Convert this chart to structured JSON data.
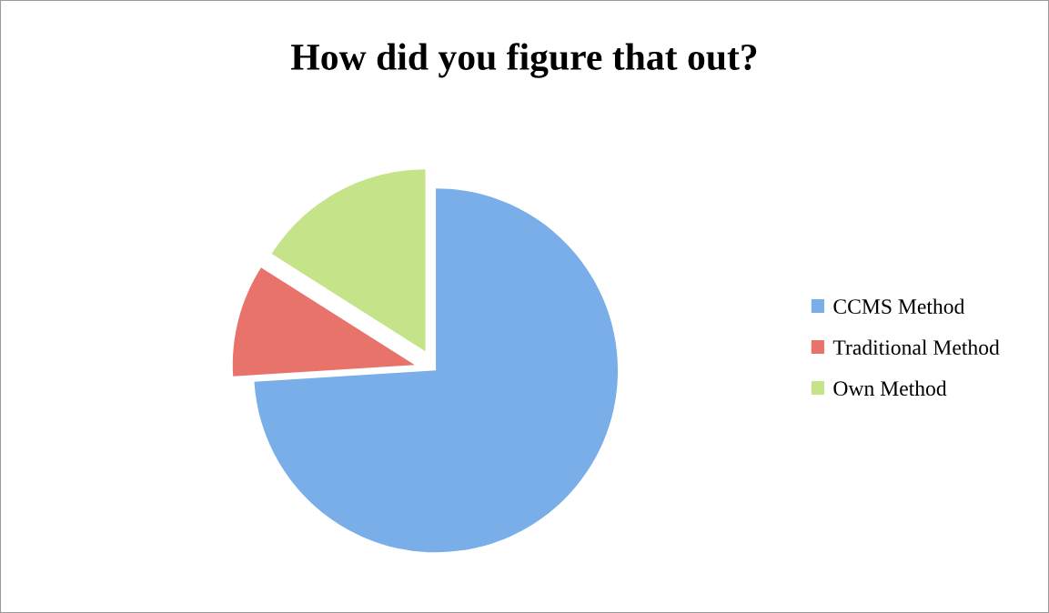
{
  "chart_data": {
    "type": "pie",
    "title": "How did you figure that out?",
    "categories": [
      "CCMS Method",
      "Traditional Method",
      "Own Method"
    ],
    "values": [
      74,
      10,
      16
    ],
    "colors": [
      "#7aaee8",
      "#e8736b",
      "#c5e48a"
    ],
    "legend": "right"
  }
}
